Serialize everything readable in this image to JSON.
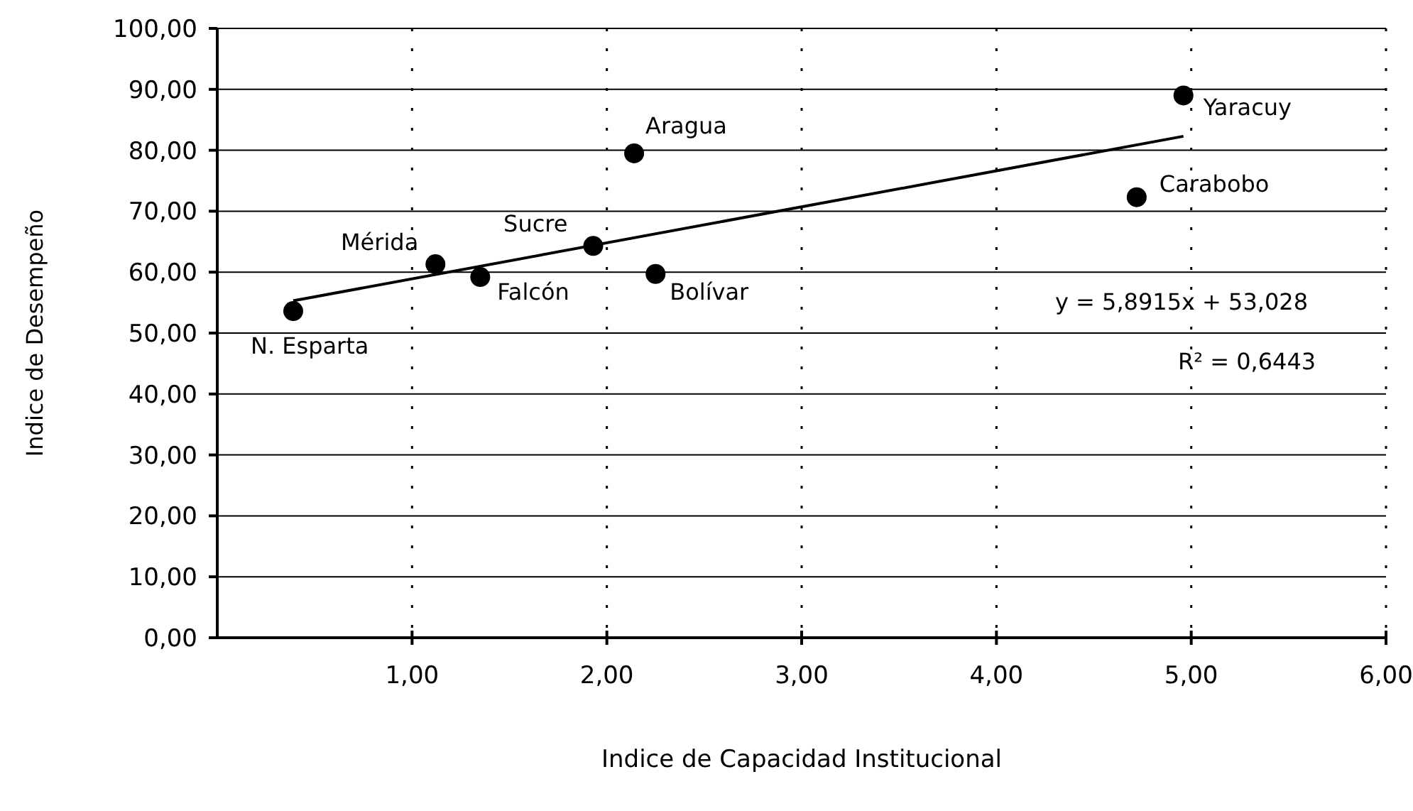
{
  "chart_data": {
    "type": "scatter",
    "xlabel": "Indice de Capacidad Institucional",
    "ylabel": "Indice de Desempeño",
    "xlim": [
      0,
      6
    ],
    "ylim": [
      0,
      100
    ],
    "xticks": [
      {
        "value": 1,
        "label": "1,00"
      },
      {
        "value": 2,
        "label": "2,00"
      },
      {
        "value": 3,
        "label": "3,00"
      },
      {
        "value": 4,
        "label": "4,00"
      },
      {
        "value": 5,
        "label": "5,00"
      },
      {
        "value": 6,
        "label": "6,00"
      }
    ],
    "yticks": [
      {
        "value": 0,
        "label": "0,00"
      },
      {
        "value": 10,
        "label": "10,00"
      },
      {
        "value": 20,
        "label": "20,00"
      },
      {
        "value": 30,
        "label": "30,00"
      },
      {
        "value": 40,
        "label": "40,00"
      },
      {
        "value": 50,
        "label": "50,00"
      },
      {
        "value": 60,
        "label": "60,00"
      },
      {
        "value": 70,
        "label": "70,00"
      },
      {
        "value": 80,
        "label": "80,00"
      },
      {
        "value": 90,
        "label": "90,00"
      },
      {
        "value": 100,
        "label": "100,00"
      }
    ],
    "grid": true,
    "series": [
      {
        "marker": "circle",
        "color": "#000000",
        "x": [
          0.39,
          1.12,
          1.35,
          1.93,
          2.14,
          2.25,
          4.72,
          4.96
        ],
        "values": [
          53.6,
          61.3,
          59.2,
          64.3,
          79.5,
          59.7,
          72.3,
          89.0
        ]
      },
      {
        "type": "line",
        "marker": "none",
        "color": "#000000",
        "x": [
          0.39,
          4.96
        ],
        "values": [
          55.3,
          82.3
        ]
      }
    ],
    "annotations": [
      {
        "text": "N. Esparta",
        "x": 0.39,
        "y": 53.6
      },
      {
        "text": "Mérida",
        "x": 1.12,
        "y": 61.3
      },
      {
        "text": "Falcón",
        "x": 1.35,
        "y": 59.2
      },
      {
        "text": "Sucre",
        "x": 1.93,
        "y": 64.3
      },
      {
        "text": "Aragua",
        "x": 2.14,
        "y": 79.5
      },
      {
        "text": "Bolívar",
        "x": 2.25,
        "y": 59.7
      },
      {
        "text": "Carabobo",
        "x": 4.72,
        "y": 72.3
      },
      {
        "text": "Yaracuy",
        "x": 4.96,
        "y": 89.0
      },
      "y = 5,8915x + 53,028",
      "R² = 0,6443"
    ]
  }
}
